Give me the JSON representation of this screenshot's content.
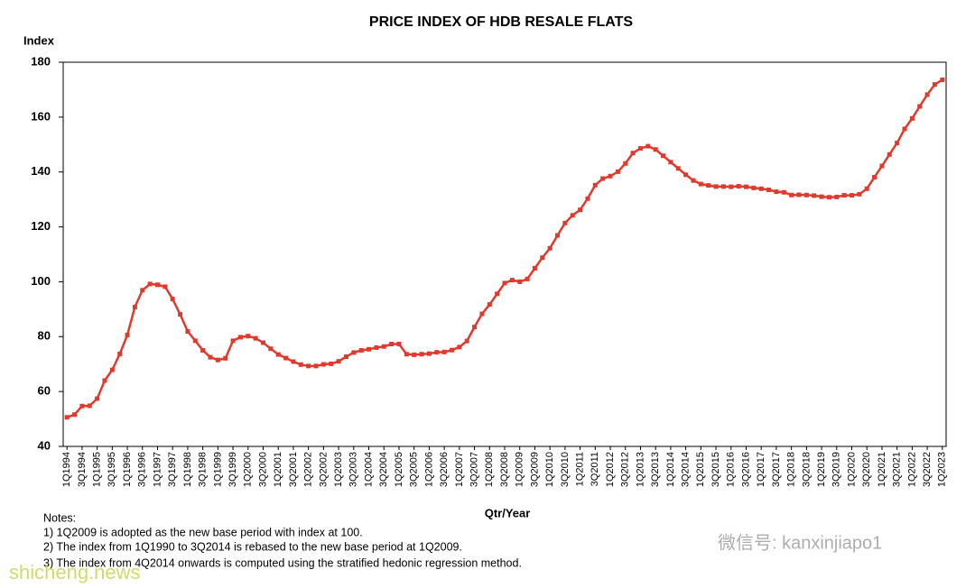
{
  "chart_data": {
    "type": "line",
    "title": "PRICE INDEX OF HDB RESALE FLATS",
    "y_label": "Index",
    "x_label": "Qtr/Year",
    "categories": [
      "1Q1994",
      null,
      "3Q1994",
      null,
      "1Q1995",
      null,
      "3Q1995",
      null,
      "1Q1996",
      null,
      "3Q1996",
      null,
      "1Q1997",
      null,
      "3Q1997",
      null,
      "1Q1998",
      null,
      "3Q1998",
      null,
      "1Q1999",
      null,
      "3Q1999",
      null,
      "1Q2000",
      null,
      "3Q2000",
      null,
      "1Q2001",
      null,
      "3Q2001",
      null,
      "1Q2002",
      null,
      "3Q2002",
      null,
      "1Q2003",
      null,
      "3Q2003",
      null,
      "1Q2004",
      null,
      "3Q2004",
      null,
      "1Q2005",
      null,
      "3Q2005",
      null,
      "1Q2006",
      null,
      "3Q2006",
      null,
      "1Q2007",
      null,
      "3Q2007",
      null,
      "1Q2008",
      null,
      "3Q2008",
      null,
      "1Q2009",
      null,
      "3Q2009",
      null,
      "1Q2010",
      null,
      "3Q2010",
      null,
      "1Q2011",
      null,
      "3Q2011",
      null,
      "1Q2012",
      null,
      "3Q2012",
      null,
      "1Q2013",
      null,
      "3Q2013",
      null,
      "1Q2014",
      null,
      "3Q2014",
      null,
      "1Q2015",
      null,
      "3Q2015",
      null,
      "1Q2016",
      null,
      "3Q2016",
      null,
      "1Q2017",
      null,
      "3Q2017",
      null,
      "1Q2018",
      null,
      "3Q2018",
      null,
      "1Q2019",
      null,
      "3Q2019",
      null,
      "1Q2020",
      null,
      "3Q2020",
      null,
      "1Q2021",
      null,
      "3Q2021",
      null,
      "1Q2022",
      null,
      "3Q2022",
      null,
      "1Q2023"
    ],
    "series": [
      {
        "name": "Price Index",
        "color": "#e03a2f",
        "values": [
          50.6,
          51.6,
          54.7,
          54.8,
          57.4,
          64,
          67.9,
          73.7,
          80.6,
          90.8,
          96.9,
          99.2,
          98.9,
          98.2,
          93.7,
          88.1,
          81.9,
          78.5,
          75,
          72.5,
          71.5,
          72.1,
          78.5,
          79.8,
          80.2,
          79.4,
          77.8,
          75.6,
          73.5,
          72.2,
          70.9,
          69.8,
          69.3,
          69.3,
          69.9,
          70.1,
          71,
          72.7,
          74.2,
          75,
          75.4,
          76,
          76.4,
          77.3,
          77.3,
          73.6,
          73.4,
          73.6,
          73.8,
          74.3,
          74.4,
          75.1,
          76.2,
          78.4,
          83.5,
          88.3,
          91.7,
          95.6,
          99.5,
          100.6,
          100,
          101,
          104.9,
          108.8,
          112.2,
          116.9,
          121.4,
          124.2,
          126.2,
          130.3,
          135.2,
          137.6,
          138.5,
          140.1,
          143.1,
          146.9,
          148.6,
          149.4,
          148.2,
          145.9,
          143.6,
          141.3,
          139,
          136.9,
          135.6,
          135.1,
          134.7,
          134.7,
          134.6,
          134.8,
          134.6,
          134.2,
          133.9,
          133.5,
          132.8,
          132.6,
          131.6,
          131.7,
          131.6,
          131.4,
          131,
          130.8,
          130.9,
          131.5,
          131.5,
          131.9,
          133.9,
          138.1,
          142.2,
          146.4,
          150.6,
          155.7,
          159.5,
          163.9,
          168.2,
          171.9,
          173.6
        ]
      }
    ],
    "ylim": [
      40,
      180
    ],
    "yticks": [
      40,
      60,
      80,
      100,
      120,
      140,
      160,
      180
    ],
    "grid": false,
    "notes": [
      "Notes:",
      "1) 1Q2009 is adopted as the new base period with index at 100.",
      "2) The index from 1Q1990 to 3Q2014 is rebased to the new base period at 1Q2009.",
      "3) The index from 4Q2014 onwards is computed using the stratified hedonic regression method."
    ]
  },
  "watermarks": [
    "shicheng.news",
    "微信号: kanxinjiapo1"
  ]
}
